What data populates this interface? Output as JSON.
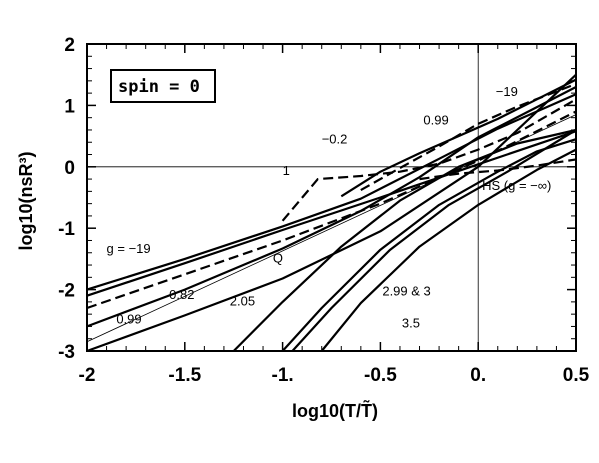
{
  "chart_data": {
    "type": "line",
    "title": "",
    "xlabel": "log10(T/T̃)",
    "ylabel": "log10(nsR³)",
    "xlim": [
      -2,
      0.5
    ],
    "ylim": [
      -3,
      2
    ],
    "x_ticks": [
      "-2",
      "-1.5",
      "-1.",
      "-0.5",
      "0.",
      "0.5"
    ],
    "y_ticks": [
      "-3",
      "-2",
      "-1",
      "0",
      "1",
      "2"
    ],
    "box_label": "spin = 0",
    "reference_lines": {
      "y": 0,
      "x": 0
    },
    "series": [
      {
        "name": "g = -19",
        "style": "solid",
        "x": [
          -2,
          -1.5,
          -1,
          -0.5,
          0,
          0.5
        ],
        "y": [
          -2.1,
          -1.57,
          -1.03,
          -0.5,
          0.04,
          0.58
        ]
      },
      {
        "name": "-0.2",
        "style": "solid",
        "x": [
          -2,
          -1.5,
          -1,
          -0.6,
          -0.2,
          0.1,
          0.5
        ],
        "y": [
          -2.0,
          -1.5,
          -0.97,
          -0.52,
          0.13,
          0.62,
          1.18
        ]
      },
      {
        "name": "Q",
        "style": "solid",
        "x": [
          -2,
          -1.5,
          -1,
          -0.5,
          0,
          0.5
        ],
        "y": [
          -3.0,
          -2.42,
          -1.82,
          -1.05,
          0.0,
          1.5
        ]
      },
      {
        "name": "0.82",
        "style": "dashed",
        "x": [
          -2,
          -1.5,
          -1,
          -0.5,
          0,
          0.5
        ],
        "y": [
          -2.3,
          -1.75,
          -1.2,
          -0.6,
          0.1,
          0.9
        ]
      },
      {
        "name": "0.99",
        "style": "solid",
        "x": [
          -2,
          -1.5,
          -1,
          -0.6,
          -0.3,
          0,
          0.5
        ],
        "y": [
          -2.6,
          -2.0,
          -1.33,
          -0.72,
          -0.17,
          0.48,
          1.3
        ]
      },
      {
        "name": "1",
        "style": "dashed",
        "x": [
          -1.0,
          -0.82,
          -0.6,
          -0.4,
          -0.2,
          0,
          0.2,
          0.5
        ],
        "y": [
          -0.88,
          -0.2,
          -0.15,
          -0.08,
          0.05,
          0.28,
          0.55,
          1.1
        ]
      },
      {
        "name": "-19",
        "style": "dashed",
        "x": [
          -0.6,
          -0.4,
          -0.2,
          0,
          0.2,
          0.5
        ],
        "y": [
          -0.38,
          -0.02,
          0.33,
          0.7,
          0.98,
          1.35
        ]
      },
      {
        "name": "0.99",
        "style": "solid",
        "x": [
          -0.7,
          -0.5,
          -0.3,
          -0.1,
          0.1,
          0.3,
          0.5
        ],
        "y": [
          -0.48,
          -0.08,
          0.22,
          0.5,
          0.78,
          1.1,
          1.42
        ]
      },
      {
        "name": "HS (g = -∞)",
        "style": "dashed",
        "x": [
          -0.3,
          -0.1,
          0.1,
          0.3,
          0.5
        ],
        "y": [
          -0.2,
          -0.11,
          -0.06,
          0.02,
          0.12
        ]
      },
      {
        "name": "2.05",
        "style": "solid",
        "x": [
          -1.25,
          -1.0,
          -0.7,
          -0.4,
          -0.1,
          0.2,
          0.5
        ],
        "y": [
          -3.0,
          -2.2,
          -1.3,
          -0.55,
          0.0,
          0.38,
          0.6
        ]
      },
      {
        "name": "2.99 & 3",
        "style": "solid",
        "x": [
          -1.0,
          -0.8,
          -0.5,
          -0.2,
          0.1,
          0.3,
          0.5
        ],
        "y": [
          -3.0,
          -2.3,
          -1.35,
          -0.62,
          -0.08,
          0.25,
          0.45
        ]
      },
      {
        "name": "2.99 & 3",
        "style": "solid",
        "x": [
          -0.95,
          -0.75,
          -0.45,
          -0.15,
          0.15,
          0.5
        ],
        "y": [
          -3.0,
          -2.3,
          -1.35,
          -0.62,
          -0.08,
          0.6
        ]
      },
      {
        "name": "3.5",
        "style": "solid",
        "x": [
          -0.8,
          -0.6,
          -0.3,
          0,
          0.3,
          0.5
        ],
        "y": [
          -3.0,
          -2.22,
          -1.3,
          -0.62,
          -0.05,
          0.28
        ]
      },
      {
        "name": "thin",
        "style": "thin",
        "x": [
          -2,
          0.5
        ],
        "y": [
          -2.85,
          0.85
        ]
      }
    ],
    "annotations": [
      {
        "text": "g = −19",
        "x": -1.9,
        "y": -1.4
      },
      {
        "text": "−0.2",
        "x": -0.8,
        "y": 0.38
      },
      {
        "text": "0.99",
        "x": -0.28,
        "y": 0.69
      },
      {
        "text": "−19",
        "x": 0.09,
        "y": 1.15
      },
      {
        "text": "1",
        "x": -1.0,
        "y": -0.13
      },
      {
        "text": "HS (g = −∞)",
        "x": 0.02,
        "y": -0.38
      },
      {
        "text": "Q",
        "x": -1.05,
        "y": -1.56
      },
      {
        "text": "2.05",
        "x": -1.27,
        "y": -2.26
      },
      {
        "text": "0.82",
        "x": -1.58,
        "y": -2.15
      },
      {
        "text": "0.99",
        "x": -1.85,
        "y": -2.55
      },
      {
        "text": "2.99 & 3",
        "x": -0.49,
        "y": -2.1
      },
      {
        "text": "3.5",
        "x": -0.39,
        "y": -2.62
      }
    ]
  }
}
